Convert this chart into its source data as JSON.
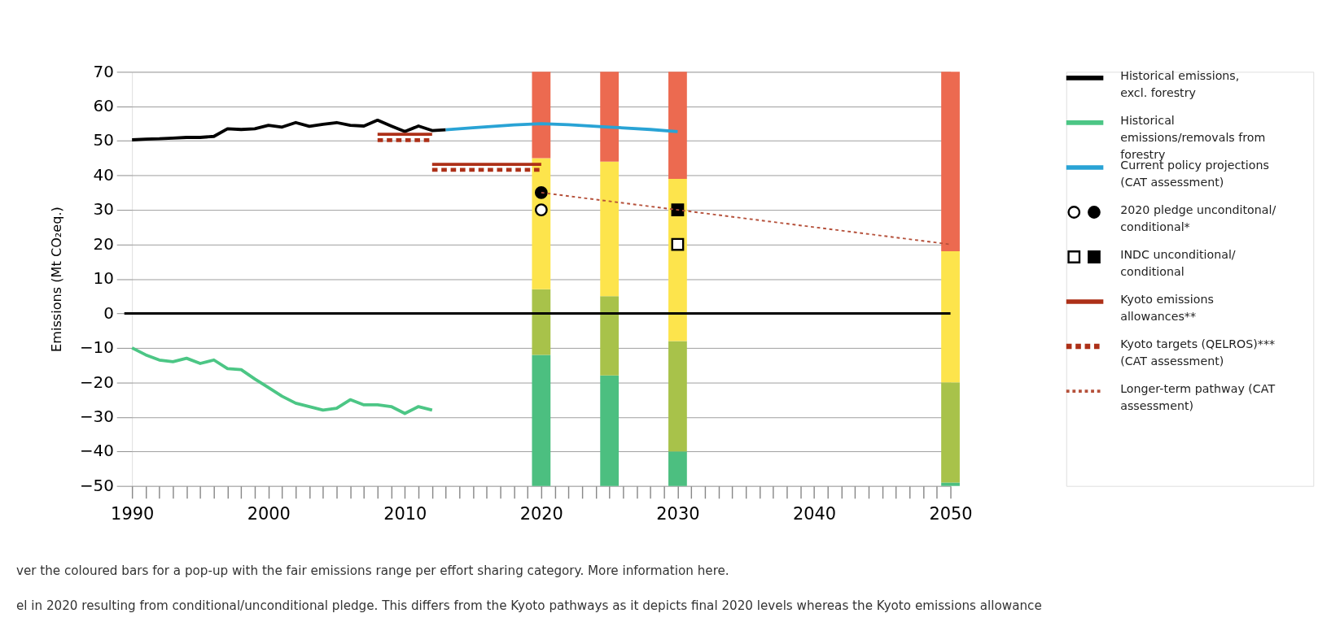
{
  "chart_data": {
    "type": "line",
    "ylabel": "Emissions (Mt CO₂eq.)",
    "xlim": [
      1990,
      2050
    ],
    "xticks": [
      1990,
      {
        "value": 1991,
        "label": null
      },
      {
        "value": 1992,
        "label": null
      },
      {
        "value": 1993,
        "label": null
      },
      {
        "value": 1994,
        "label": null
      },
      {
        "value": 1995,
        "label": null
      },
      {
        "value": 1996,
        "label": null
      },
      {
        "value": 1997,
        "label": null
      },
      {
        "value": 1998,
        "label": null
      },
      {
        "value": 1999,
        "label": null
      },
      2000,
      {
        "value": 2001,
        "label": null
      },
      {
        "value": 2002,
        "label": null
      },
      {
        "value": 2003,
        "label": null
      },
      {
        "value": 2004,
        "label": null
      },
      {
        "value": 2005,
        "label": null
      },
      {
        "value": 2006,
        "label": null
      },
      {
        "value": 2007,
        "label": null
      },
      {
        "value": 2008,
        "label": null
      },
      {
        "value": 2009,
        "label": null
      },
      2010,
      {
        "value": 2011,
        "label": null
      },
      {
        "value": 2012,
        "label": null
      },
      {
        "value": 2013,
        "label": null
      },
      {
        "value": 2014,
        "label": null
      },
      {
        "value": 2015,
        "label": null
      },
      {
        "value": 2016,
        "label": null
      },
      {
        "value": 2017,
        "label": null
      },
      {
        "value": 2018,
        "label": null
      },
      {
        "value": 2019,
        "label": null
      },
      2020,
      {
        "value": 2021,
        "label": null
      },
      {
        "value": 2022,
        "label": null
      },
      {
        "value": 2023,
        "label": null
      },
      {
        "value": 2024,
        "label": null
      },
      {
        "value": 2025,
        "label": null
      },
      {
        "value": 2026,
        "label": null
      },
      {
        "value": 2027,
        "label": null
      },
      {
        "value": 2028,
        "label": null
      },
      {
        "value": 2029,
        "label": null
      },
      2030,
      {
        "value": 2031,
        "label": null
      },
      {
        "value": 2032,
        "label": null
      },
      {
        "value": 2033,
        "label": null
      },
      {
        "value": 2034,
        "label": null
      },
      {
        "value": 2035,
        "label": null
      },
      {
        "value": 2036,
        "label": null
      },
      {
        "value": 2037,
        "label": null
      },
      {
        "value": 2038,
        "label": null
      },
      {
        "value": 2039,
        "label": null
      },
      2040,
      {
        "value": 2041,
        "label": null
      },
      {
        "value": 2042,
        "label": null
      },
      {
        "value": 2043,
        "label": null
      },
      {
        "value": 2044,
        "label": null
      },
      {
        "value": 2045,
        "label": null
      },
      {
        "value": 2046,
        "label": null
      },
      {
        "value": 2047,
        "label": null
      },
      {
        "value": 2048,
        "label": null
      },
      {
        "value": 2049,
        "label": null
      },
      2050
    ],
    "ylim": [
      -50,
      70
    ],
    "yticks": [
      -50,
      -40,
      -30,
      -20,
      -10,
      0,
      10,
      20,
      30,
      40,
      50,
      60,
      70
    ],
    "grid": "y",
    "legend": "right",
    "series": [
      {
        "type": "bar",
        "color": "#4cbf80",
        "x": [
          2020,
          2025,
          2030,
          2050
        ],
        "base": [
          -50,
          -50,
          -50,
          -50
        ],
        "values": [
          38,
          32,
          10,
          1
        ]
      },
      {
        "type": "bar",
        "color": "#a8c24a",
        "x": [
          2020,
          2025,
          2030,
          2050
        ],
        "base": [
          -12,
          -18,
          -40,
          -49
        ],
        "values": [
          19,
          23,
          32,
          29
        ]
      },
      {
        "type": "bar",
        "color": "#fde44c",
        "x": [
          2020,
          2025,
          2030,
          2050
        ],
        "base": [
          7,
          5,
          -8,
          -20
        ],
        "values": [
          38,
          39,
          47,
          38
        ]
      },
      {
        "type": "bar",
        "color": "#ec6a50",
        "x": [
          2020,
          2025,
          2030,
          2050
        ],
        "base": [
          45,
          44,
          39,
          18
        ],
        "values": [
          25,
          26,
          31,
          52
        ]
      },
      {
        "name": "Historical emissions, excl. forestry",
        "color": "#000000",
        "x": [
          1990,
          1991,
          1992,
          1993,
          1994,
          1995,
          1996,
          1997,
          1998,
          1999,
          2000,
          2001,
          2002,
          2003,
          2004,
          2005,
          2006,
          2007,
          2008,
          2009,
          2010,
          2011,
          2012,
          2013
        ],
        "values": [
          50.3,
          50.5,
          50.6,
          50.8,
          51,
          51,
          51.3,
          53.5,
          53.3,
          53.5,
          54.5,
          54,
          55.3,
          54.2,
          54.8,
          55.3,
          54.5,
          54.3,
          56,
          54.3,
          52.7,
          54.3,
          53,
          53.2
        ]
      },
      {
        "name": "Historical emissions/removals from forestry",
        "color": "#4cc685",
        "x": [
          1990,
          1991,
          1992,
          1993,
          1994,
          1995,
          1996,
          1997,
          1998,
          1999,
          2000,
          2001,
          2002,
          2003,
          2004,
          2005,
          2006,
          2007,
          2008,
          2009,
          2010,
          2011,
          2012
        ],
        "values": [
          -10,
          -12,
          -13.5,
          -14,
          -13,
          -14.5,
          -13.5,
          -16,
          -16.3,
          -19,
          -21.5,
          -24,
          -26,
          -27,
          -28,
          -27.5,
          -25,
          -26.5,
          -26.5,
          -27,
          -29,
          -27,
          -28
        ]
      },
      {
        "name": "Current policy projections (CAT assessment)",
        "color": "#29a3d5",
        "x": [
          2013,
          2015,
          2018,
          2020,
          2022,
          2025,
          2028,
          2030
        ],
        "values": [
          53.2,
          53.8,
          54.6,
          55,
          54.7,
          54,
          53.3,
          52.7
        ]
      },
      {
        "type": "scatter",
        "name": "2020 pledge unconditonal/ conditional*",
        "marker": "circle",
        "color": "#000000",
        "x": [
          2020
        ],
        "values": [
          35
        ]
      },
      {
        "type": "scatter",
        "marker": "circle",
        "color": "#ffffff",
        "x": [
          2020
        ],
        "values": [
          30
        ]
      },
      {
        "type": "scatter",
        "name": "INDC unconditional/ conditional",
        "marker": "square",
        "color": "#000000",
        "x": [
          2030
        ],
        "values": [
          30
        ]
      },
      {
        "type": "scatter",
        "marker": "square",
        "color": "#ffffff",
        "x": [
          2030
        ],
        "values": [
          20
        ]
      },
      {
        "name": "Kyoto emissions allowances**",
        "color": "#ad3018",
        "line_style": "solid",
        "x": [
          2008,
          2012
        ],
        "values": [
          51.9,
          51.9
        ]
      },
      {
        "color": "#ad3018",
        "line_style": "solid",
        "x": [
          2012,
          2020
        ],
        "values": [
          43.2,
          43.2
        ]
      },
      {
        "name": "Kyoto targets (QELROS)*** (CAT assessment)",
        "color": "#ad3018",
        "line_style": "dashed",
        "x": [
          2008,
          2012
        ],
        "values": [
          50.2,
          50.2
        ]
      },
      {
        "color": "#ad3018",
        "line_style": "dashed",
        "x": [
          2012,
          2020
        ],
        "values": [
          41.6,
          41.6
        ]
      },
      {
        "name": "Longer-term pathway (CAT assessment)",
        "color": "#b5503a",
        "line_style": "dotted",
        "x": [
          2020,
          2050
        ],
        "values": [
          35,
          20
        ]
      }
    ],
    "ref_lines": [
      {
        "axis": "y",
        "value": 0,
        "color": "#000000"
      }
    ],
    "annotations": [
      "ver the coloured bars for a pop-up with the fair emissions range per effort sharing category. More information here.",
      "el in 2020 resulting from conditional/unconditional pledge. This differs from the Kyoto pathways as it depicts final 2020 levels whereas the Kyoto emissions allowance"
    ]
  }
}
